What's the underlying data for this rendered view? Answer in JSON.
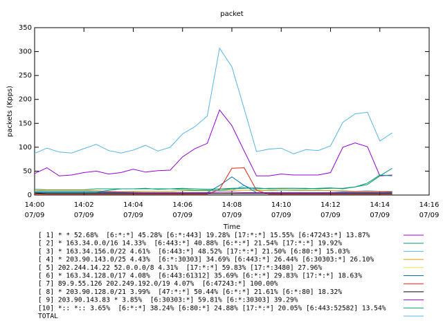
{
  "chart_data": {
    "type": "line",
    "title": "packet",
    "x_label": "Time",
    "y_label": "packets (Kpps)",
    "x": [
      0,
      0.5,
      1,
      1.5,
      2,
      2.5,
      3,
      3.5,
      4,
      4.5,
      5,
      5.5,
      6,
      6.5,
      7,
      7.5,
      8,
      8.5,
      9,
      9.5,
      10,
      10.5,
      11,
      11.5,
      12,
      12.5,
      13,
      13.5,
      14,
      14.5
    ],
    "xlim": [
      0,
      16
    ],
    "xticks": [
      {
        "value": 0,
        "label": "14:00",
        "date": "07/09"
      },
      {
        "value": 2,
        "label": "14:02",
        "date": "07/09"
      },
      {
        "value": 4,
        "label": "14:04",
        "date": "07/09"
      },
      {
        "value": 6,
        "label": "14:06",
        "date": "07/09"
      },
      {
        "value": 8,
        "label": "14:08",
        "date": "07/09"
      },
      {
        "value": 10,
        "label": "14:10",
        "date": "07/09"
      },
      {
        "value": 12,
        "label": "14:12",
        "date": "07/09"
      },
      {
        "value": 14,
        "label": "14:14",
        "date": "07/09"
      },
      {
        "value": 16,
        "label": "14:16",
        "date": "07/09"
      }
    ],
    "ylim": [
      0,
      350
    ],
    "yticks": [
      0,
      50,
      100,
      150,
      200,
      250,
      300,
      350
    ],
    "series": [
      {
        "name": "[ 1] * * 52.68%  [6:*:*] 45.28% [6:*:443] 19.28% [17:*:*] 15.55% [6:47243:*] 13.87%",
        "color": "#9400d3",
        "values": [
          45,
          57,
          40,
          42,
          47,
          50,
          44,
          47,
          54,
          48,
          51,
          52,
          80,
          97,
          108,
          178,
          145,
          92,
          40,
          40,
          44,
          42,
          42,
          42,
          47,
          100,
          109,
          101,
          40,
          42
        ]
      },
      {
        "name": "[ 2] * 163.34.0.0/16 14.33%  [6:443:*] 40.88% [6:*:*] 21.54% [17:*:*] 19.92%",
        "color": "#009e73",
        "values": [
          12,
          11,
          11,
          11,
          11,
          13,
          13,
          13,
          13,
          14,
          12,
          13,
          14,
          13,
          12,
          13,
          14,
          15,
          13,
          14,
          14,
          14,
          13,
          14,
          15,
          13,
          17,
          25,
          42,
          40
        ]
      },
      {
        "name": "[ 3] * 163.34.156.0/22 4.61%  [6:443:*] 48.52% [17:*:*] 21.50% [6:80:*] 15.03%",
        "color": "#56b4e9",
        "values": [
          8,
          8,
          8,
          8,
          8,
          8,
          7,
          7,
          8,
          8,
          8,
          8,
          9,
          9,
          9,
          10,
          10,
          20,
          10,
          9,
          9,
          9,
          9,
          9,
          9,
          8,
          8,
          9,
          8,
          8
        ]
      },
      {
        "name": "[ 4] * 203.90.143.0/25 4.43%  [6:*:30303] 34.69% [6:443:*] 26.44% [6:30303:*] 26.10%",
        "color": "#e69f00",
        "values": [
          9,
          10,
          10,
          10,
          10,
          9,
          8,
          7,
          7,
          8,
          8,
          8,
          9,
          9,
          9,
          10,
          10,
          10,
          10,
          10,
          12,
          11,
          10,
          10,
          9,
          9,
          8,
          8,
          8,
          7
        ]
      },
      {
        "name": "[ 5] 202.244.14.22 52.0.0.0/8 4.31%  [17:*:*] 59.83% [17:*:3480] 27.96%",
        "color": "#f0e442",
        "values": [
          3,
          3,
          3,
          3,
          3,
          3,
          3,
          3,
          3,
          3,
          3,
          3,
          3,
          3,
          3,
          3,
          4,
          3,
          3,
          3,
          3,
          3,
          3,
          3,
          3,
          3,
          3,
          3,
          3,
          3
        ]
      },
      {
        "name": "[ 6] * 163.34.128.0/17 4.08%  [6:443:61312] 35.69% [6:*:*] 29.83% [17:*:*] 18.63%",
        "color": "#0072b2",
        "values": [
          5,
          5,
          5,
          5,
          5,
          5,
          5,
          5,
          5,
          5,
          5,
          5,
          5,
          5,
          5,
          20,
          38,
          20,
          5,
          5,
          5,
          5,
          5,
          5,
          5,
          5,
          5,
          5,
          5,
          5
        ]
      },
      {
        "name": "[ 7] 89.9.55.126 202.249.192.0/19 4.07%  [6:47243:*] 100.00%",
        "color": "#e51e10",
        "values": [
          2,
          2,
          2,
          2,
          2,
          2,
          2,
          2,
          2,
          2,
          2,
          2,
          2,
          2,
          2,
          12,
          56,
          57,
          10,
          2,
          2,
          2,
          2,
          2,
          2,
          2,
          2,
          2,
          2,
          2
        ]
      },
      {
        "name": "[ 8] * 203.90.128.0/21 3.99%  [47:*:*] 50.44% [6:*:*] 21.61% [6:*:80] 18.32%",
        "color": "#000000",
        "values": [
          4,
          3,
          3,
          3,
          3,
          3,
          3,
          3,
          3,
          3,
          3,
          3,
          3,
          3,
          3,
          3,
          3,
          3,
          3,
          3,
          3,
          3,
          3,
          3,
          3,
          3,
          3,
          3,
          3,
          3
        ]
      },
      {
        "name": "[ 9] 203.90.143.83 * 3.85%  [6:30303:*] 59.81% [6:*:30303] 39.29%",
        "color": "#9400d3",
        "values": [
          6,
          6,
          6,
          6,
          6,
          6,
          6,
          6,
          5,
          5,
          5,
          5,
          5,
          5,
          5,
          6,
          6,
          5,
          5,
          5,
          5,
          5,
          5,
          5,
          5,
          6,
          6,
          6,
          6,
          6
        ]
      },
      {
        "name": "[10] *:: *:: 3.65%  [6:*:*] 38.24% [6:80:*] 24.88% [17:*:*] 20.05% [6:443:52582] 13.54%",
        "color": "#009e73",
        "values": [
          6,
          6,
          6,
          6,
          6,
          6,
          10,
          13,
          13,
          13,
          13,
          13,
          12,
          10,
          10,
          10,
          13,
          14,
          15,
          13,
          14,
          14,
          14,
          13,
          14,
          14,
          17,
          22,
          40,
          56
        ]
      },
      {
        "name": "TOTAL",
        "color": "#56b4e9",
        "values": [
          87,
          98,
          90,
          88,
          97,
          106,
          93,
          88,
          94,
          104,
          92,
          100,
          128,
          143,
          165,
          307,
          268,
          180,
          91,
          96,
          98,
          86,
          95,
          93,
          103,
          152,
          170,
          173,
          113,
          130
        ]
      }
    ]
  }
}
